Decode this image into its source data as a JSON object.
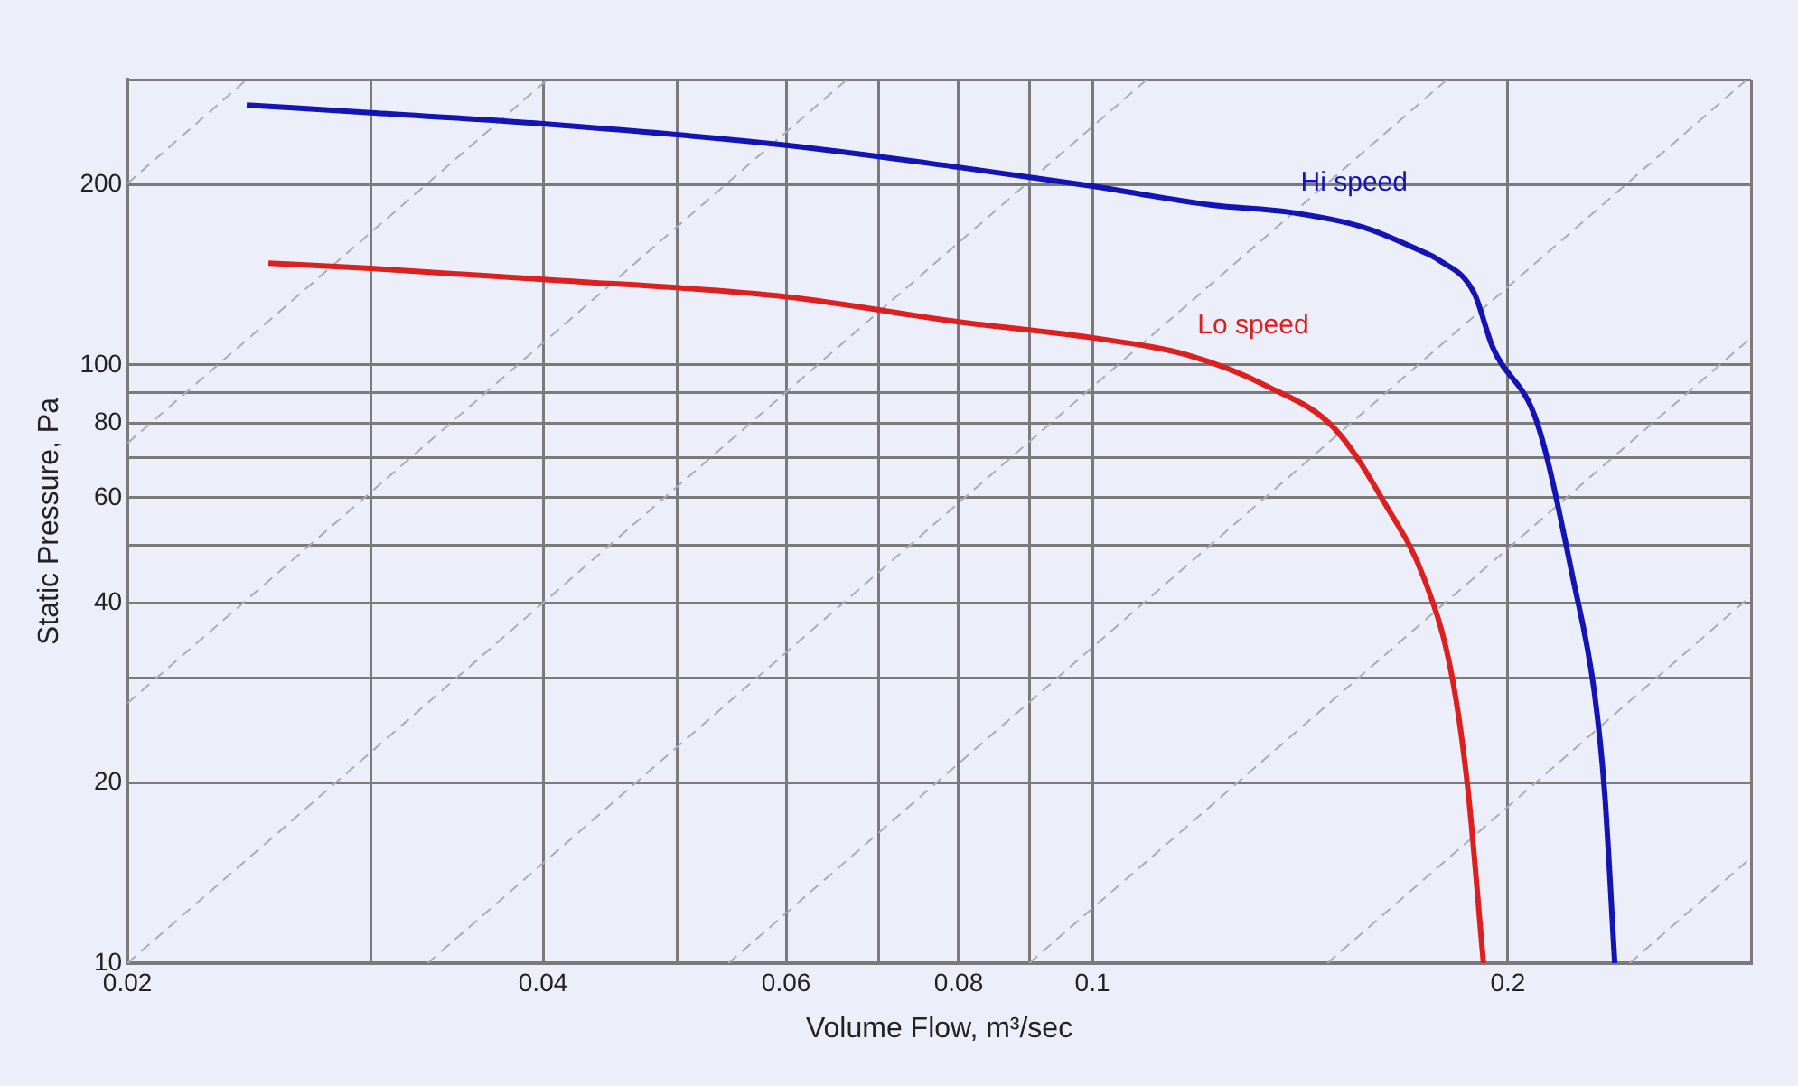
{
  "chart_data": {
    "type": "line",
    "xlabel": "Volume Flow, m³/sec",
    "ylabel": "Static Pressure, Pa",
    "log": "xy",
    "grid": true,
    "legend": false,
    "marker": "none",
    "line_style": "solid",
    "xlim": [
      0.02,
      0.3
    ],
    "xticks": [
      0.02,
      {
        "value": 0.03,
        "label": null
      },
      0.04,
      {
        "value": 0.05,
        "label": null
      },
      0.06,
      {
        "value": 0.07,
        "label": null
      },
      0.08,
      {
        "value": 0.09,
        "label": null
      },
      0.1,
      0.2,
      {
        "value": 0.3,
        "label": null
      }
    ],
    "ylim": [
      10,
      300
    ],
    "yticks": [
      10,
      20,
      {
        "value": 30,
        "label": null
      },
      40,
      {
        "value": 50,
        "label": null
      },
      60,
      {
        "value": 70,
        "label": null
      },
      80,
      {
        "value": 90,
        "label": null
      },
      100,
      200,
      {
        "value": 300,
        "label": null
      }
    ],
    "series": [
      {
        "name": "Hi speed",
        "color": "#1414b4",
        "x": [
          0.0244,
          0.03,
          0.04,
          0.06,
          0.08,
          0.1,
          0.122,
          0.139,
          0.157,
          0.172,
          0.178,
          0.189,
          0.195,
          0.21,
          0.223,
          0.231,
          0.235,
          0.239
        ],
        "values": [
          272,
          264,
          253,
          233,
          214,
          199,
          185,
          180,
          170,
          156,
          150,
          132,
          107,
          80,
          43.8,
          28.4,
          19.3,
          10
        ]
      },
      {
        "name": "Lo speed",
        "color": "#dc2020",
        "x": [
          0.0253,
          0.03,
          0.04,
          0.06,
          0.08,
          0.1,
          0.117,
          0.134,
          0.15,
          0.163,
          0.174,
          0.182,
          0.187,
          0.192
        ],
        "values": [
          148,
          145,
          139,
          130,
          118,
          111,
          104,
          92,
          78,
          58.5,
          43.8,
          30.5,
          19.7,
          10
        ]
      },
      {
        "color": "#a9abb5",
        "line_style": "dashed",
        "x": [
          0.02,
          0.0244
        ],
        "values": [
          201,
          300
        ]
      },
      {
        "color": "#a9abb5",
        "line_style": "dashed",
        "x": [
          0.02,
          0.0403
        ],
        "values": [
          74,
          300
        ]
      },
      {
        "color": "#a9abb5",
        "line_style": "dashed",
        "x": [
          0.02,
          0.0664
        ],
        "values": [
          27.2,
          300
        ]
      },
      {
        "color": "#a9abb5",
        "line_style": "dashed",
        "x": [
          0.02,
          0.1095
        ],
        "values": [
          10,
          300
        ]
      },
      {
        "color": "#a9abb5",
        "line_style": "dashed",
        "x": [
          0.033,
          0.1807
        ],
        "values": [
          10,
          300
        ]
      },
      {
        "color": "#a9abb5",
        "line_style": "dashed",
        "x": [
          0.0545,
          0.298
        ],
        "values": [
          10,
          300
        ]
      },
      {
        "color": "#a9abb5",
        "line_style": "dashed",
        "x": [
          0.09,
          0.3
        ],
        "values": [
          10,
          111
        ]
      },
      {
        "color": "#a9abb5",
        "line_style": "dashed",
        "x": [
          0.148,
          0.3
        ],
        "values": [
          10,
          41.1
        ]
      },
      {
        "color": "#a9abb5",
        "line_style": "dashed",
        "x": [
          0.245,
          0.3
        ],
        "values": [
          10,
          15
        ]
      }
    ]
  }
}
